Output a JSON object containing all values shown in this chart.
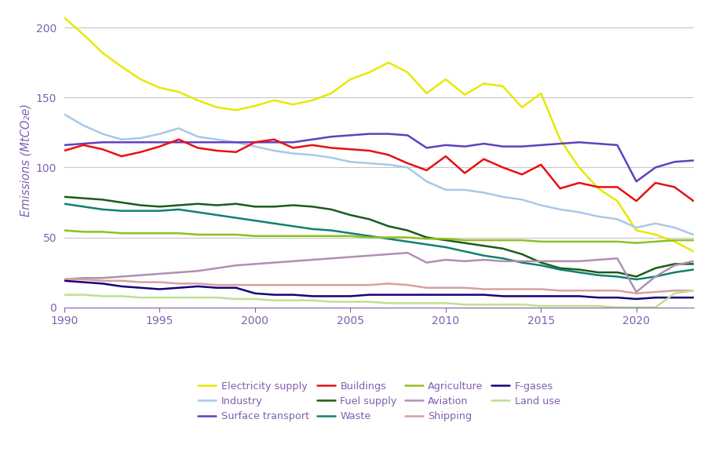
{
  "years": [
    1990,
    1991,
    1992,
    1993,
    1994,
    1995,
    1996,
    1997,
    1998,
    1999,
    2000,
    2001,
    2002,
    2003,
    2004,
    2005,
    2006,
    2007,
    2008,
    2009,
    2010,
    2011,
    2012,
    2013,
    2014,
    2015,
    2016,
    2017,
    2018,
    2019,
    2020,
    2021,
    2022,
    2023
  ],
  "series": {
    "Electricity supply": [
      207,
      195,
      182,
      172,
      163,
      157,
      154,
      148,
      143,
      141,
      144,
      148,
      145,
      148,
      153,
      163,
      168,
      175,
      168,
      153,
      163,
      152,
      160,
      158,
      143,
      153,
      120,
      100,
      85,
      76,
      55,
      52,
      47,
      40
    ],
    "Industry": [
      138,
      130,
      124,
      120,
      121,
      124,
      128,
      122,
      120,
      118,
      115,
      112,
      110,
      109,
      107,
      104,
      103,
      102,
      100,
      90,
      84,
      84,
      82,
      79,
      77,
      73,
      70,
      68,
      65,
      63,
      57,
      60,
      57,
      52
    ],
    "Surface transport": [
      116,
      117,
      118,
      118,
      118,
      118,
      118,
      118,
      118,
      118,
      118,
      118,
      118,
      120,
      122,
      123,
      124,
      124,
      123,
      114,
      116,
      115,
      117,
      115,
      115,
      116,
      117,
      118,
      117,
      116,
      90,
      100,
      104,
      105
    ],
    "Buildings": [
      112,
      116,
      113,
      108,
      111,
      115,
      120,
      114,
      112,
      111,
      118,
      120,
      114,
      116,
      114,
      113,
      112,
      109,
      103,
      98,
      108,
      96,
      106,
      100,
      95,
      102,
      85,
      89,
      86,
      86,
      76,
      89,
      86,
      76
    ],
    "Fuel supply": [
      79,
      78,
      77,
      75,
      73,
      72,
      73,
      74,
      73,
      74,
      72,
      72,
      73,
      72,
      70,
      66,
      63,
      58,
      55,
      50,
      48,
      46,
      44,
      42,
      38,
      32,
      28,
      27,
      25,
      25,
      22,
      28,
      31,
      31
    ],
    "Waste": [
      74,
      72,
      70,
      69,
      69,
      69,
      70,
      68,
      66,
      64,
      62,
      60,
      58,
      56,
      55,
      53,
      51,
      49,
      47,
      45,
      43,
      40,
      37,
      35,
      32,
      30,
      27,
      25,
      23,
      22,
      20,
      22,
      25,
      27
    ],
    "Agriculture": [
      55,
      54,
      54,
      53,
      53,
      53,
      53,
      52,
      52,
      52,
      51,
      51,
      51,
      51,
      51,
      51,
      50,
      50,
      50,
      49,
      49,
      48,
      48,
      48,
      48,
      47,
      47,
      47,
      47,
      47,
      46,
      47,
      48,
      48
    ],
    "Aviation": [
      20,
      21,
      21,
      22,
      23,
      24,
      25,
      26,
      28,
      30,
      31,
      32,
      33,
      34,
      35,
      36,
      37,
      38,
      39,
      32,
      34,
      33,
      34,
      33,
      33,
      33,
      33,
      33,
      34,
      35,
      11,
      22,
      30,
      33
    ],
    "Shipping": [
      20,
      20,
      19,
      19,
      18,
      18,
      17,
      17,
      16,
      16,
      16,
      16,
      16,
      16,
      16,
      16,
      16,
      17,
      16,
      14,
      14,
      14,
      13,
      13,
      13,
      13,
      12,
      12,
      12,
      12,
      10,
      11,
      12,
      12
    ],
    "F-gases": [
      19,
      18,
      17,
      15,
      14,
      13,
      14,
      15,
      14,
      14,
      10,
      9,
      9,
      8,
      8,
      8,
      9,
      9,
      9,
      9,
      9,
      9,
      9,
      8,
      8,
      8,
      8,
      8,
      7,
      7,
      6,
      7,
      7,
      7
    ],
    "Land use": [
      9,
      9,
      8,
      8,
      7,
      7,
      7,
      7,
      7,
      6,
      6,
      5,
      5,
      5,
      4,
      4,
      4,
      3,
      3,
      3,
      3,
      2,
      2,
      2,
      2,
      1,
      1,
      1,
      1,
      0,
      0,
      0,
      10,
      12
    ]
  },
  "colors": {
    "Electricity supply": "#e8e800",
    "Industry": "#a8c8e8",
    "Surface transport": "#6040c0",
    "Buildings": "#e81010",
    "Fuel supply": "#1a5c1a",
    "Waste": "#108070",
    "Agriculture": "#90c020",
    "Aviation": "#b090b0",
    "Shipping": "#d8a0a0",
    "F-gases": "#18007a",
    "Land use": "#c0e090"
  },
  "ylabel": "Emissions (MtCO₂e)",
  "ylim": [
    0,
    210
  ],
  "yticks": [
    0,
    50,
    100,
    150,
    200
  ],
  "xlim": [
    1990,
    2023
  ],
  "xticks": [
    1990,
    1995,
    2000,
    2005,
    2010,
    2015,
    2020
  ],
  "legend_order": [
    "Electricity supply",
    "Industry",
    "Surface transport",
    "Buildings",
    "Fuel supply",
    "Waste",
    "Agriculture",
    "Aviation",
    "Shipping",
    "F-gases",
    "Land use"
  ],
  "background_color": "#ffffff",
  "grid_color": "#c8c8c8",
  "tick_color": "#8060b0",
  "label_color": "#8060b0",
  "line_width": 1.8
}
